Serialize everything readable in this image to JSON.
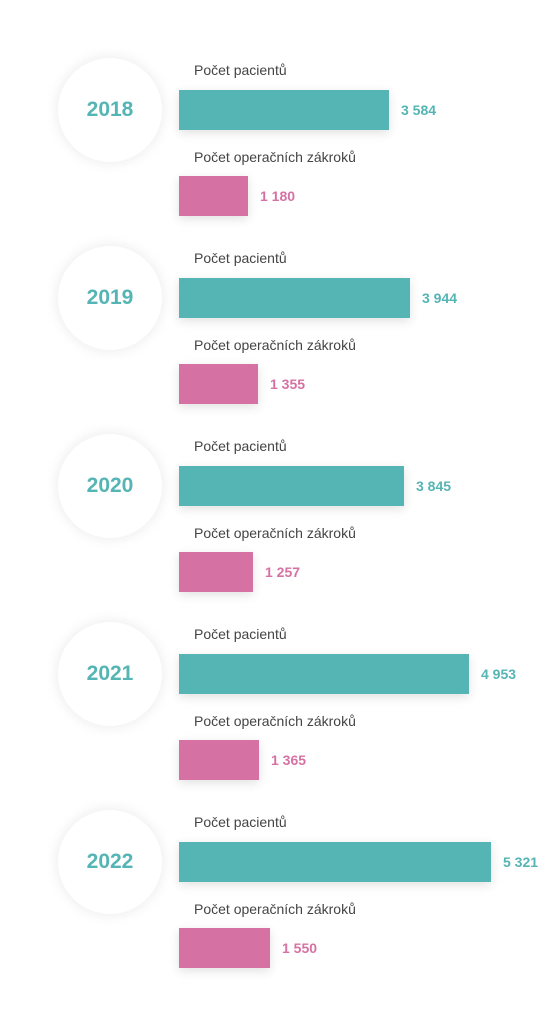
{
  "chart_data": {
    "type": "bar",
    "categories": [
      "2018",
      "2019",
      "2020",
      "2021",
      "2022"
    ],
    "series": [
      {
        "name": "Počet pacientů",
        "values": [
          3584,
          3944,
          3845,
          4953,
          5321
        ],
        "labels": [
          "3 584",
          "3 944",
          "3 845",
          "4 953",
          "5 321"
        ],
        "color": "#54b5b4"
      },
      {
        "name": "Počet operačních zákroků",
        "values": [
          1180,
          1355,
          1257,
          1365,
          1550
        ],
        "labels": [
          "1 180",
          "1 355",
          "1 257",
          "1 365",
          "1 550"
        ],
        "color": "#d572a3"
      }
    ],
    "xlim": [
      0,
      5321
    ],
    "orientation": "horizontal",
    "grid": false,
    "legend": "none"
  }
}
